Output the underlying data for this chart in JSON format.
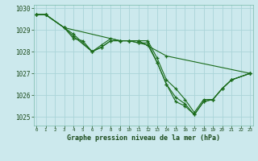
{
  "title": "Graphe pression niveau de la mer (hPa)",
  "bg_color": "#cce9ed",
  "grid_color": "#aad4d8",
  "line_color": "#1a6b1a",
  "xlim": [
    -0.3,
    23.3
  ],
  "ylim": [
    1024.6,
    1030.15
  ],
  "yticks": [
    1025,
    1026,
    1027,
    1028,
    1029,
    1030
  ],
  "xticks": [
    0,
    1,
    2,
    3,
    4,
    5,
    6,
    7,
    8,
    9,
    10,
    11,
    12,
    13,
    14,
    15,
    16,
    17,
    18,
    19,
    20,
    21,
    22,
    23
  ],
  "series_data": {
    "line1": {
      "x": [
        0,
        1,
        3,
        9,
        10,
        11,
        14,
        23
      ],
      "y": [
        1029.7,
        1029.7,
        1029.1,
        1028.5,
        1028.5,
        1028.5,
        1027.8,
        1027.0
      ]
    },
    "line2": {
      "x": [
        0,
        1,
        3,
        4,
        6,
        7,
        8,
        9,
        10,
        11,
        12,
        13,
        14,
        15,
        16,
        17,
        18,
        19,
        20,
        21,
        23
      ],
      "y": [
        1029.7,
        1029.7,
        1029.1,
        1028.8,
        1028.0,
        1028.3,
        1028.6,
        1028.5,
        1028.5,
        1028.5,
        1028.5,
        1027.7,
        1026.7,
        1026.3,
        1025.8,
        1025.2,
        1025.8,
        1025.8,
        1026.3,
        1026.7,
        1027.0
      ]
    },
    "line3": {
      "x": [
        0,
        1,
        3,
        4,
        6,
        7,
        8,
        9,
        10,
        11,
        12,
        13,
        14,
        15,
        16,
        17,
        18,
        19,
        20,
        21,
        23
      ],
      "y": [
        1029.7,
        1029.7,
        1029.1,
        1028.7,
        1028.0,
        1028.2,
        1028.5,
        1028.5,
        1028.5,
        1028.4,
        1028.4,
        1027.5,
        1026.5,
        1025.9,
        1025.6,
        1025.1,
        1025.7,
        1025.8,
        1026.3,
        1026.7,
        1027.0
      ]
    },
    "line4": {
      "x": [
        0,
        1,
        3,
        4,
        5,
        6,
        7,
        8,
        9,
        10,
        11,
        12,
        13,
        14,
        15,
        16,
        17,
        18,
        19,
        20,
        21,
        23
      ],
      "y": [
        1029.7,
        1029.7,
        1029.1,
        1028.6,
        1028.5,
        1028.0,
        1028.2,
        1028.5,
        1028.5,
        1028.5,
        1028.4,
        1028.3,
        1027.5,
        1026.5,
        1025.7,
        1025.5,
        1025.1,
        1025.7,
        1025.8,
        1026.3,
        1026.7,
        1027.0
      ]
    }
  }
}
